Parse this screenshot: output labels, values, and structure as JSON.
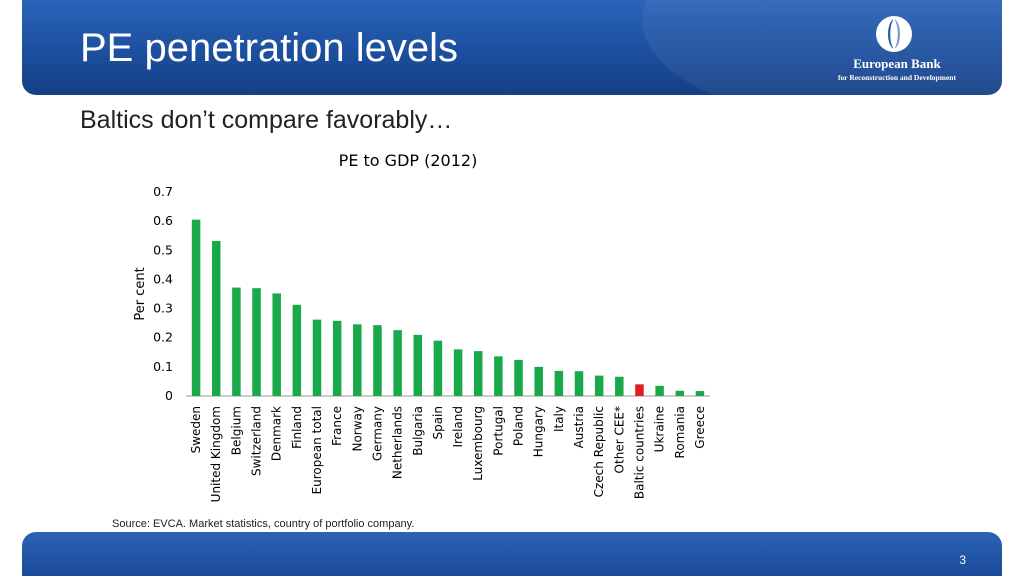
{
  "header": {
    "title": "PE penetration levels",
    "logo": {
      "name": "European Bank",
      "subtitle": "for Reconstruction and Development",
      "icon": "ebrd-logo-icon"
    }
  },
  "subtitle": "Baltics don’t compare favorably…",
  "source": "Source: EVCA. Market statistics, country of portfolio company.",
  "page_number": "3",
  "colors": {
    "header_blue": "#1c4f9e",
    "bar_green": "#19a84a",
    "bar_highlight_red": "#e01e26"
  },
  "chart_data": {
    "type": "bar",
    "title": "PE to GDP (2012)",
    "xlabel": "",
    "ylabel": "Per cent",
    "ylim": [
      0,
      0.7
    ],
    "yticks": [
      "0",
      "0.1",
      "0.2",
      "0.3",
      "0.4",
      "0.5",
      "0.6",
      "0.7"
    ],
    "grid": false,
    "legend": "none",
    "highlight": "Baltic countries",
    "categories": [
      "Sweden",
      "United Kingdom",
      "Belgium",
      "Switzerland",
      "Denmark",
      "Finland",
      "European total",
      "France",
      "Norway",
      "Germany",
      "Netherlands",
      "Bulgaria",
      "Spain",
      "Ireland",
      "Luxembourg",
      "Portugal",
      "Poland",
      "Hungary",
      "Italy",
      "Austria",
      "Czech Republic",
      "Other CEE*",
      "Baltic countries",
      "Ukraine",
      "Romania",
      "Greece"
    ],
    "values": [
      0.605,
      0.532,
      0.372,
      0.37,
      0.352,
      0.313,
      0.262,
      0.258,
      0.246,
      0.243,
      0.226,
      0.21,
      0.19,
      0.16,
      0.154,
      0.136,
      0.124,
      0.1,
      0.086,
      0.085,
      0.07,
      0.066,
      0.04,
      0.035,
      0.018,
      0.017
    ]
  }
}
